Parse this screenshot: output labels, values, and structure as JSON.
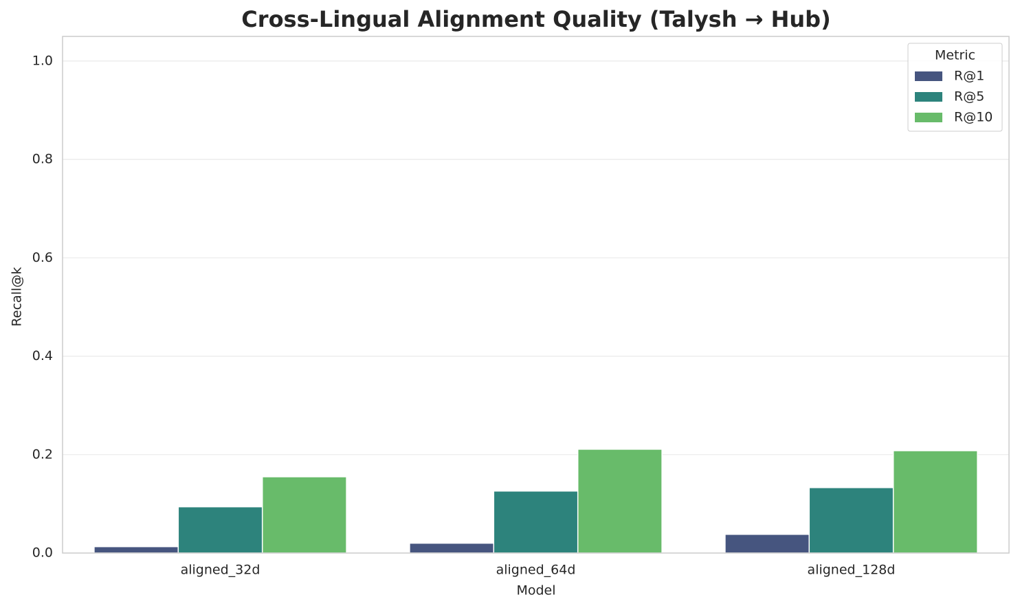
{
  "chart_data": {
    "type": "bar",
    "title": "Cross-Lingual Alignment Quality (Talysh → Hub)",
    "x_label": "Model",
    "y_label": "Recall@k",
    "categories": [
      "aligned_32d",
      "aligned_64d",
      "aligned_128d"
    ],
    "series": [
      {
        "name": "R@1",
        "color": "#46557f",
        "values": [
          0.013,
          0.02,
          0.038
        ]
      },
      {
        "name": "R@5",
        "color": "#2d837c",
        "values": [
          0.094,
          0.126,
          0.133
        ]
      },
      {
        "name": "R@10",
        "color": "#68bb6a",
        "values": [
          0.155,
          0.211,
          0.208
        ]
      }
    ],
    "legend_title": "Metric",
    "legend": "upper right",
    "ylim": [
      0,
      1.05
    ],
    "yticks": [
      {
        "value": 0,
        "label": "0.0"
      },
      {
        "value": 0.2,
        "label": "0.2"
      },
      {
        "value": 0.4,
        "label": "0.4"
      },
      {
        "value": 0.6,
        "label": "0.6"
      },
      {
        "value": 0.8,
        "label": "0.8"
      },
      {
        "value": 1,
        "label": "1.0"
      }
    ],
    "grid": true
  }
}
